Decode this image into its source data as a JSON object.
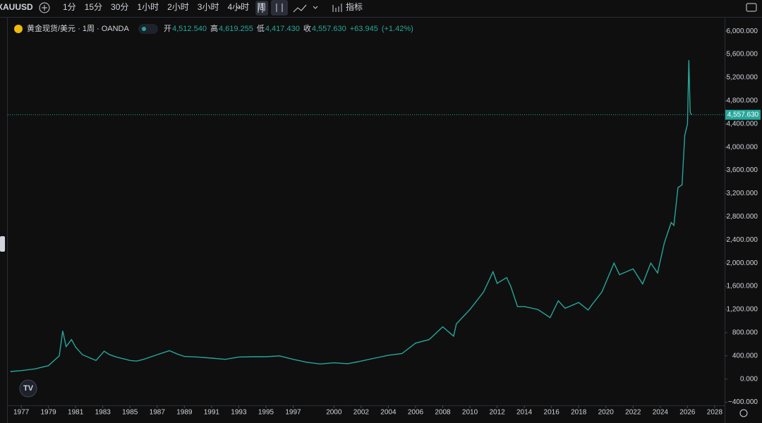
{
  "toolbar": {
    "symbol": "XAUUSD",
    "intervals": [
      "1分",
      "15分",
      "30分",
      "1小时",
      "2小时",
      "3小时",
      "4小时",
      "周"
    ],
    "indicators": "指标"
  },
  "chart_data": {
    "type": "line",
    "legend": {
      "title": "黄金现货/美元 · 1周 · OANDA",
      "open_label": "开",
      "open": "4,512.540",
      "high_label": "高",
      "high": "4,619.255",
      "low_label": "低",
      "low": "4,417.430",
      "close_label": "收",
      "close": "4,557.630",
      "change": "+63.945",
      "change_pct": "(+1.42%)"
    },
    "x": [
      1976.2,
      1977,
      1978,
      1979,
      1979.8,
      1980.05,
      1980.3,
      1980.7,
      1981,
      1981.5,
      1982.5,
      1983.1,
      1983.5,
      1984,
      1985,
      1985.5,
      1986,
      1987,
      1987.9,
      1988.5,
      1989,
      1990,
      1991,
      1992,
      1993,
      1994,
      1995,
      1996,
      1997,
      1998,
      1999,
      2000,
      2001,
      2002,
      2003,
      2004,
      2005,
      2006,
      2007,
      2008,
      2008.8,
      2009,
      2010,
      2011,
      2011.7,
      2012,
      2012.7,
      2013,
      2013.5,
      2014,
      2015,
      2015.9,
      2016.5,
      2017,
      2018,
      2018.7,
      2019,
      2019.7,
      2020.6,
      2021,
      2022,
      2022.7,
      2023.3,
      2023.8,
      2024.3,
      2024.8,
      2025,
      2025.3,
      2025.6,
      2025.8,
      2026,
      2026.1,
      2026.2,
      2026.3
    ],
    "series": [
      {
        "name": "XAUUSD",
        "color": "#26a69a",
        "values": [
          130,
          145,
          175,
          230,
          400,
          830,
          560,
          680,
          550,
          420,
          320,
          480,
          420,
          380,
          320,
          310,
          340,
          420,
          490,
          430,
          390,
          380,
          360,
          340,
          380,
          385,
          385,
          400,
          340,
          290,
          260,
          280,
          265,
          310,
          360,
          410,
          440,
          620,
          680,
          900,
          740,
          950,
          1200,
          1500,
          1850,
          1650,
          1750,
          1600,
          1250,
          1250,
          1200,
          1060,
          1350,
          1220,
          1320,
          1190,
          1290,
          1500,
          2000,
          1800,
          1900,
          1640,
          2000,
          1830,
          2350,
          2700,
          2650,
          3300,
          3350,
          4200,
          4400,
          5500,
          4600,
          4557.63
        ]
      }
    ],
    "last_price": {
      "value": 4557.63,
      "label": "4,557.630"
    },
    "xlim": [
      1976.01,
      2028.73
    ],
    "xticks": [
      1977,
      1979,
      1981,
      1983,
      1985,
      1987,
      1989,
      1991,
      1993,
      1995,
      1997,
      2000,
      2002,
      2004,
      2006,
      2008,
      2010,
      2012,
      2014,
      2016,
      2018,
      2020,
      2022,
      2024,
      2026,
      2028
    ],
    "ylim": [
      -454,
      6172
    ],
    "yticks": [
      {
        "value": -400,
        "label": "−400.000"
      },
      {
        "value": 0,
        "label": "0.000"
      },
      {
        "value": 400,
        "label": "400.000"
      },
      {
        "value": 800,
        "label": "800.000"
      },
      {
        "value": 1200,
        "label": "1,200.000"
      },
      {
        "value": 1600,
        "label": "1,600.000"
      },
      {
        "value": 2000,
        "label": "2,000.000"
      },
      {
        "value": 2400,
        "label": "2,400.000"
      },
      {
        "value": 2800,
        "label": "2,800.000"
      },
      {
        "value": 3200,
        "label": "3,200.000"
      },
      {
        "value": 3600,
        "label": "3,600.000"
      },
      {
        "value": 4000,
        "label": "4,000.000"
      },
      {
        "value": 4400,
        "label": "4,400.000"
      },
      {
        "value": 4800,
        "label": "4,800.000"
      },
      {
        "value": 5200,
        "label": "5,200.000"
      },
      {
        "value": 5600,
        "label": "5,600.000"
      },
      {
        "value": 6000,
        "label": "6,000.000"
      }
    ]
  }
}
